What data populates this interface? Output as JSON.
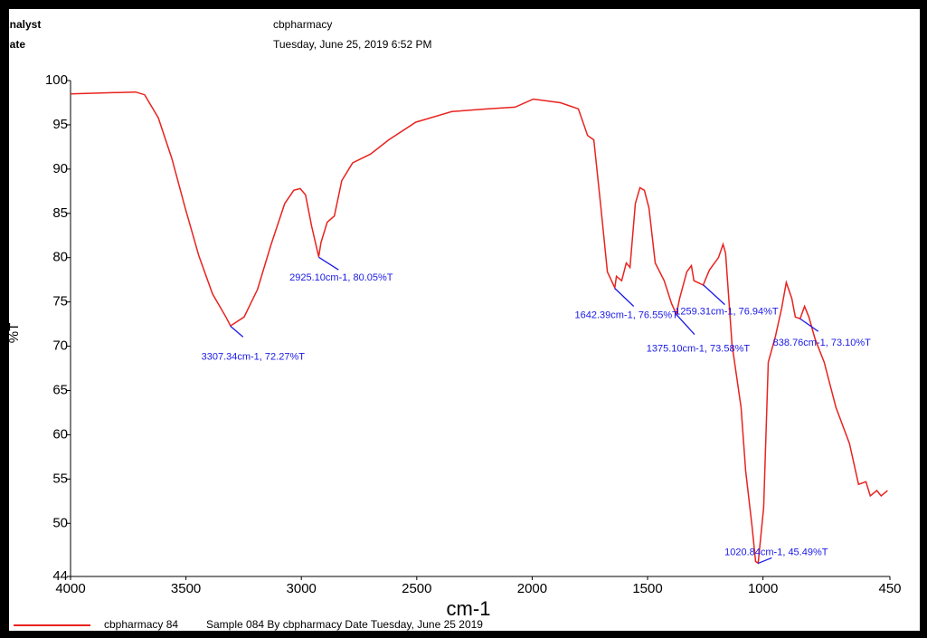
{
  "header": {
    "analyst_label": "Analyst",
    "date_label": "Date",
    "analyst": "cbpharmacy",
    "date": "Tuesday, June 25, 2019 6:52 PM"
  },
  "chart_data": {
    "type": "line",
    "xlabel": "cm-1",
    "ylabel": "%T",
    "xlim": [
      4000,
      450
    ],
    "ylim": [
      44,
      100
    ],
    "xticks": [
      4000,
      3500,
      3000,
      2500,
      2000,
      1500,
      1000,
      450
    ],
    "yticks": [
      100,
      95,
      90,
      85,
      80,
      75,
      70,
      65,
      60,
      55,
      50,
      44
    ],
    "legend": {
      "name": "cbpharmacy 84",
      "description": "Sample 084 By cbpharmacy Date Tuesday, June 25 2019"
    },
    "series": [
      {
        "name": "cbpharmacy 84",
        "color": "#e8231f",
        "x": [
          4000,
          3718,
          3679,
          3620,
          3561,
          3503,
          3444,
          3385,
          3327,
          3307,
          3248,
          3190,
          3131,
          3072,
          3033,
          3005,
          2982,
          2955,
          2925,
          2915,
          2888,
          2857,
          2825,
          2778,
          2700,
          2622,
          2504,
          2348,
          2191,
          2074,
          1995,
          1878,
          1800,
          1760,
          1733,
          1702,
          1674,
          1642,
          1635,
          1612,
          1592,
          1576,
          1553,
          1533,
          1514,
          1494,
          1467,
          1428,
          1396,
          1375,
          1361,
          1330,
          1310,
          1299,
          1283,
          1259,
          1232,
          1193,
          1173,
          1162,
          1134,
          1095,
          1075,
          1048,
          1032,
          1021,
          997,
          977,
          946,
          919,
          899,
          875,
          860,
          839,
          820,
          801,
          774,
          735,
          684,
          625,
          586,
          554,
          535,
          507,
          488,
          460
        ],
        "values": [
          98.5,
          98.7,
          98.4,
          95.8,
          91.2,
          85.6,
          80.2,
          75.9,
          73.3,
          72.3,
          73.3,
          76.4,
          81.5,
          86.1,
          87.6,
          87.8,
          87.1,
          83.5,
          80.1,
          81.7,
          84.0,
          84.7,
          88.7,
          90.7,
          91.7,
          93.3,
          95.3,
          96.5,
          96.8,
          97.0,
          97.9,
          97.5,
          96.8,
          93.8,
          93.3,
          85.6,
          78.4,
          76.6,
          77.9,
          77.4,
          79.4,
          78.9,
          86.1,
          87.9,
          87.6,
          85.6,
          79.4,
          77.4,
          74.8,
          73.6,
          75.4,
          78.4,
          79.1,
          77.4,
          77.2,
          76.9,
          78.6,
          80.0,
          81.5,
          80.5,
          70.2,
          63.1,
          55.9,
          49.8,
          45.7,
          45.5,
          51.8,
          68.2,
          71.1,
          74.3,
          77.2,
          75.4,
          73.3,
          73.1,
          74.5,
          73.3,
          70.8,
          68.2,
          63.1,
          59.0,
          54.4,
          54.7,
          53.1,
          53.7,
          53.1,
          53.7
        ]
      }
    ],
    "annotations": [
      {
        "text": "3307.34cm-1, 72.27%T",
        "x": 3307.34,
        "y": 72.27
      },
      {
        "text": "2925.10cm-1, 80.05%T",
        "x": 2925.1,
        "y": 80.05
      },
      {
        "text": "1642.39cm-1, 76.55%T",
        "x": 1642.39,
        "y": 76.55
      },
      {
        "text": "1259.31cm-1, 76.94%T",
        "x": 1259.31,
        "y": 76.94
      },
      {
        "text": "1375.10cm-1, 73.58%T",
        "x": 1375.1,
        "y": 73.58
      },
      {
        "text": "838.76cm-1, 73.10%T",
        "x": 838.76,
        "y": 73.1
      },
      {
        "text": "1020.84cm-1, 45.49%T",
        "x": 1020.84,
        "y": 45.49
      }
    ]
  }
}
